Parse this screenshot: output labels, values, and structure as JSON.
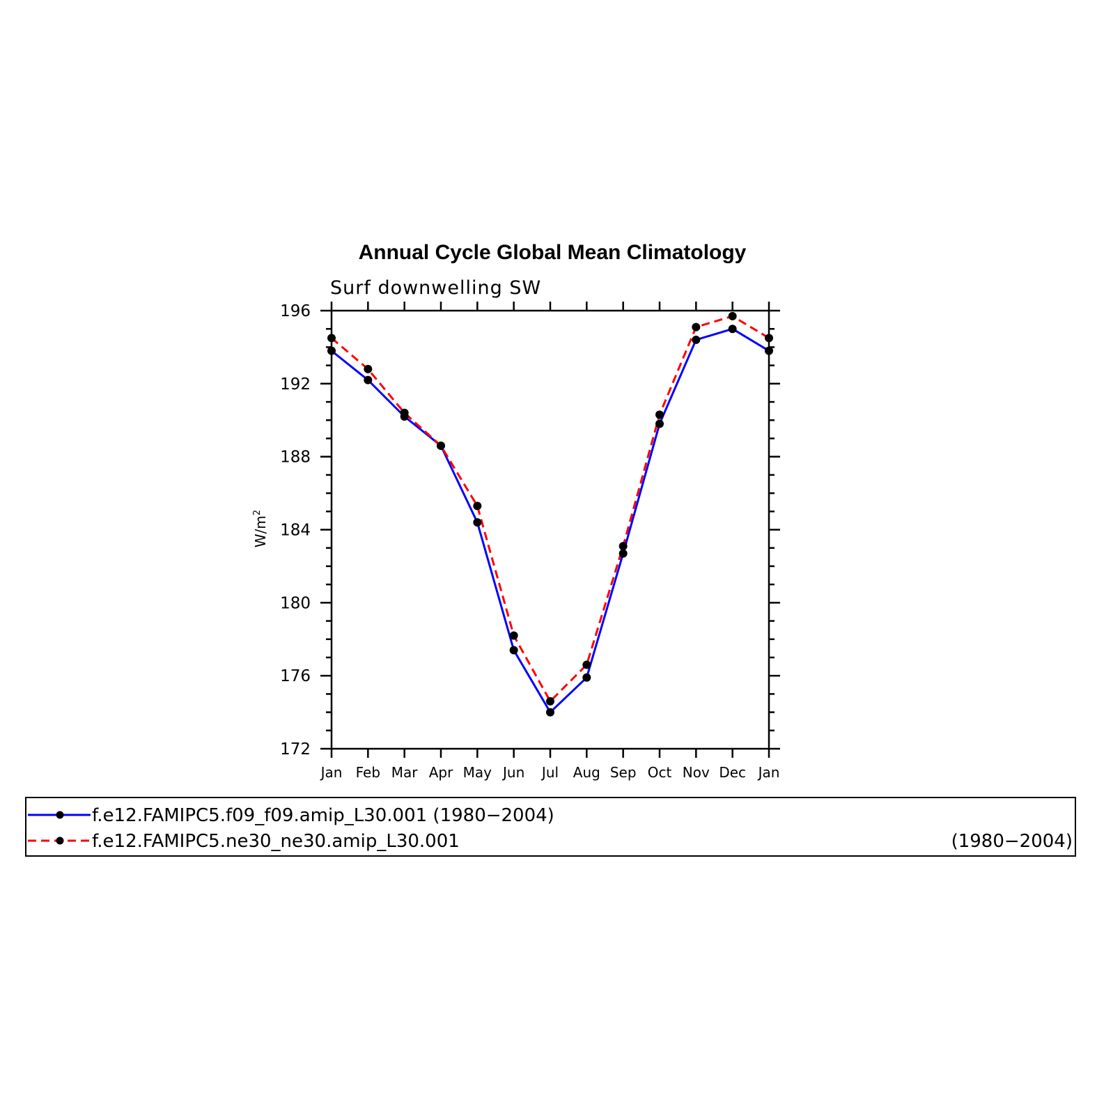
{
  "chart_data": {
    "type": "line",
    "title": "Annual Cycle Global Mean Climatology",
    "subtitle": "Surf downwelling SW",
    "ylabel": "W/m",
    "ylabel_superscript": "2",
    "xlabel": "",
    "ylim": [
      172,
      196
    ],
    "yticks": [
      "196",
      "192",
      "188",
      "184",
      "180",
      "176",
      "172"
    ],
    "categories": [
      "Jan",
      "Feb",
      "Mar",
      "Apr",
      "May",
      "Jun",
      "Jul",
      "Aug",
      "Sep",
      "Oct",
      "Nov",
      "Dec",
      "Jan"
    ],
    "grid": false,
    "legend_position": "bottom",
    "series": [
      {
        "name": "f.e12.FAMIPC5.f09_f09.amip_L30.001",
        "period": "(1980−2004)",
        "color": "#0000ff",
        "line_style": "solid",
        "marker": "circle",
        "values": [
          193.8,
          192.2,
          190.2,
          188.6,
          184.4,
          177.4,
          174.0,
          175.9,
          182.7,
          189.8,
          194.4,
          195.0,
          193.8
        ]
      },
      {
        "name": "f.e12.FAMIPC5.ne30_ne30.amip_L30.001",
        "period": "(1980−2004)",
        "color": "#ff0000",
        "line_style": "dashed",
        "marker": "circle",
        "values": [
          194.5,
          192.8,
          190.4,
          188.6,
          185.3,
          178.2,
          174.6,
          176.6,
          183.1,
          190.3,
          195.1,
          195.7,
          194.5
        ]
      }
    ]
  }
}
